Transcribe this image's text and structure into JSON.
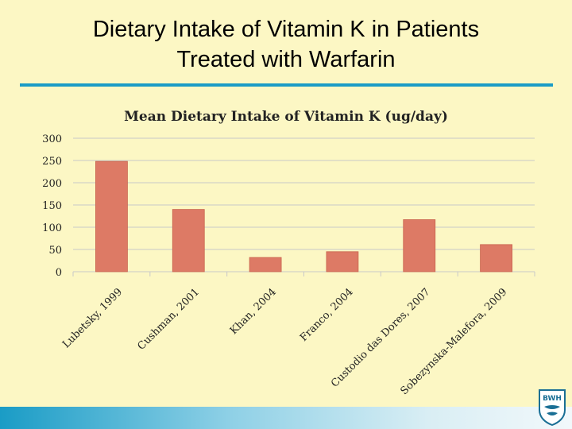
{
  "slide": {
    "title_line1": "Dietary Intake of Vitamin K in Patients",
    "title_line2": "Treated with Warfarin",
    "logo_text": "BWH"
  },
  "chart_data": {
    "type": "bar",
    "title": "Mean Dietary Intake of Vitamin K (ug/day)",
    "categories": [
      "Lubetsky, 1999",
      "Cushman, 2001",
      "Khan, 2004",
      "Franco, 2004",
      "Custodio das Dores, 2007",
      "Sobezynska-Malefora, 2009"
    ],
    "values": [
      248,
      140,
      32,
      45,
      117,
      61
    ],
    "ylim": [
      0,
      300
    ],
    "yticks": [
      0,
      50,
      100,
      150,
      200,
      250,
      300
    ],
    "grid": true,
    "bar_color": "#dd7a65",
    "grid_color": "#c9c9c9",
    "xlabel": "",
    "ylabel": ""
  }
}
